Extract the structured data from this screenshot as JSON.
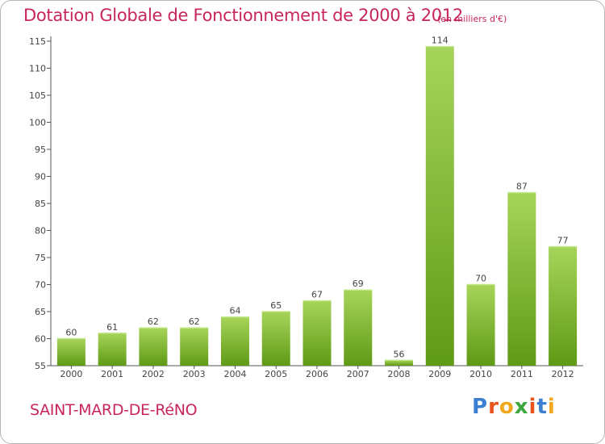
{
  "header": {
    "title": "Dotation Globale de Fonctionnement de 2000 à 2012",
    "unit": "(en milliers d'€)"
  },
  "footer": {
    "city": "SAINT-MARD-DE-RéNO",
    "logo": [
      "P",
      "r",
      "o",
      "x",
      "i",
      "t",
      "i"
    ]
  },
  "colors": {
    "accent": "#c8265b",
    "bar_light": "#a6d45a",
    "bar_dark": "#5f9a16",
    "logo": [
      "#3a7fd1",
      "#e8541b",
      "#f2a81d",
      "#3da63d",
      "#e8541b",
      "#3a7fd1",
      "#f2a81d"
    ]
  },
  "chart_data": {
    "type": "bar",
    "title": "Dotation Globale de Fonctionnement de 2000 à 2012",
    "subtitle": "(en milliers d'€)",
    "categories": [
      "2000",
      "2001",
      "2002",
      "2003",
      "2004",
      "2005",
      "2006",
      "2007",
      "2008",
      "2009",
      "2010",
      "2011",
      "2012"
    ],
    "values": [
      60,
      61,
      62,
      62,
      64,
      65,
      67,
      69,
      56,
      114,
      70,
      87,
      77
    ],
    "ylim": [
      55,
      115
    ],
    "yticks": [
      55,
      60,
      65,
      70,
      75,
      80,
      85,
      90,
      95,
      100,
      105,
      110,
      115
    ],
    "grid": false,
    "data_labels": true
  }
}
